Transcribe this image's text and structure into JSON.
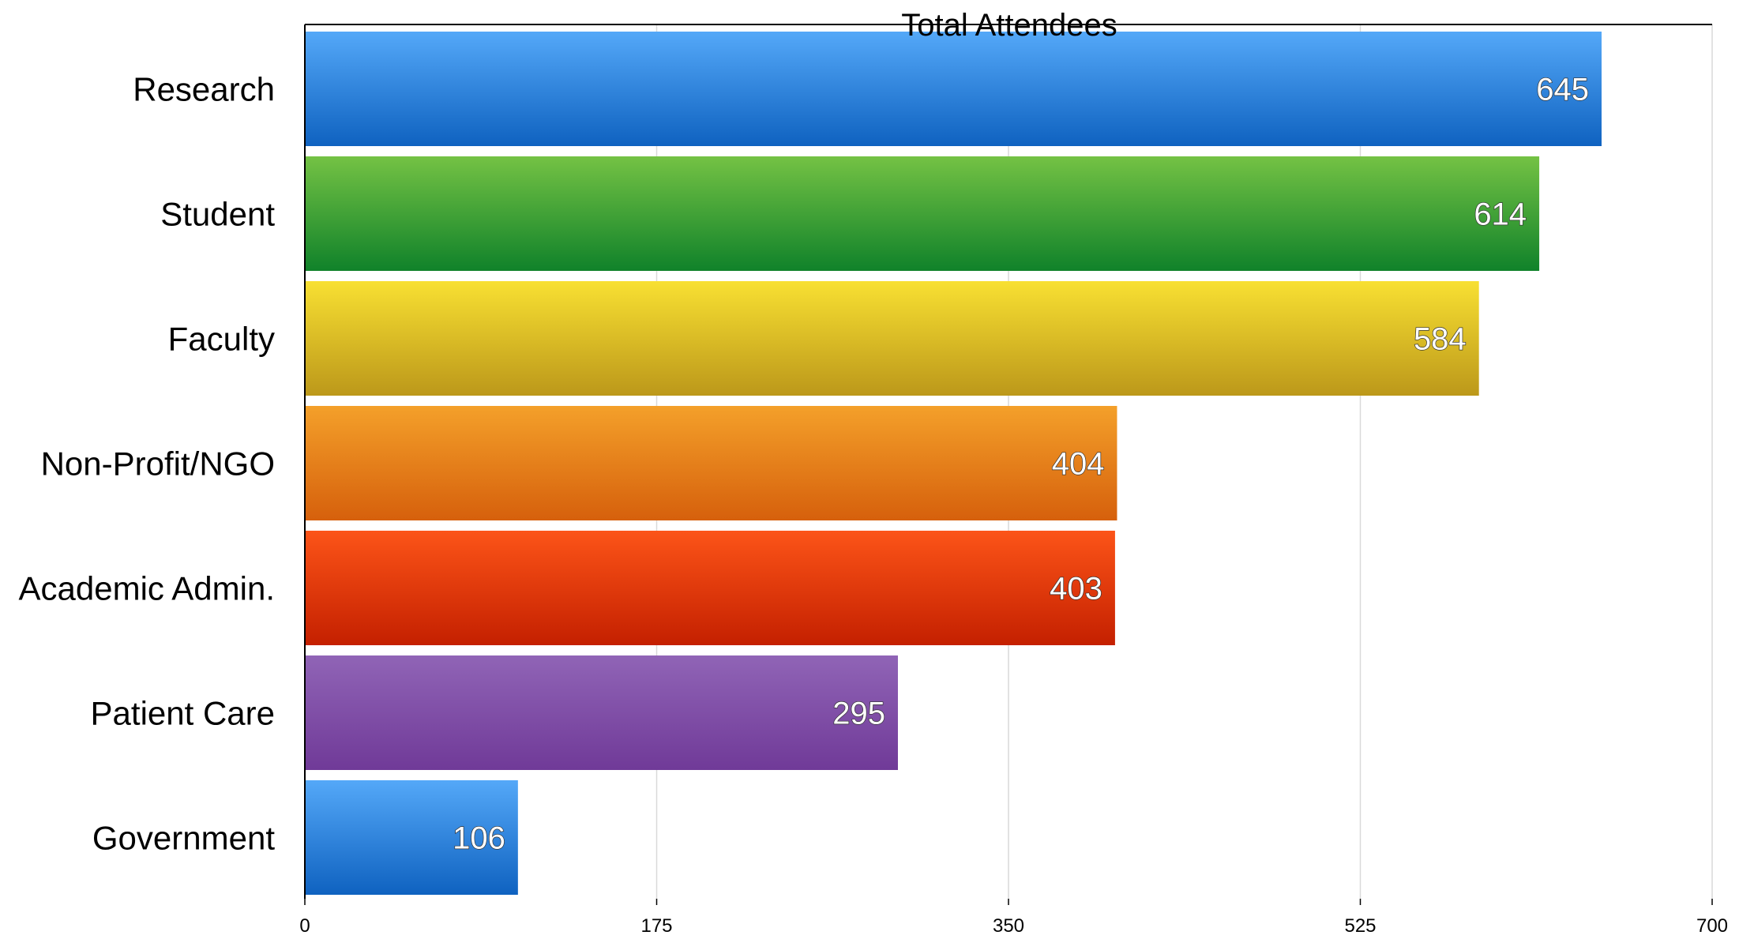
{
  "chart_data": {
    "type": "bar",
    "orientation": "horizontal",
    "title": "Total Attendees",
    "categories": [
      "Research",
      "Student",
      "Faculty",
      "Non-Profit/NGO",
      "Academic Admin.",
      "Patient Care",
      "Government"
    ],
    "values": [
      645,
      614,
      584,
      404,
      403,
      295,
      106
    ],
    "value_labels": [
      "645",
      "614",
      "584",
      "404",
      "403",
      "295",
      "106"
    ],
    "x_ticks": [
      0,
      175,
      350,
      525,
      700
    ],
    "x_tick_labels": [
      "0",
      "175",
      "350",
      "525",
      "700"
    ],
    "xlim": [
      0,
      700
    ],
    "xlabel": "",
    "ylabel": "",
    "grid": "vertical",
    "legend": "none",
    "bar_colors": [
      [
        "#54a8f8",
        "#0f62c0"
      ],
      [
        "#74c244",
        "#10822a"
      ],
      [
        "#f8e032",
        "#bc981a"
      ],
      [
        "#f4a02a",
        "#d6600c"
      ],
      [
        "#fc5418",
        "#c42000"
      ],
      [
        "#9064b6",
        "#703a98"
      ],
      [
        "#54a8f8",
        "#0f62c0"
      ]
    ],
    "grid_color": "#d9d9d9",
    "axis_color": "#000000"
  }
}
